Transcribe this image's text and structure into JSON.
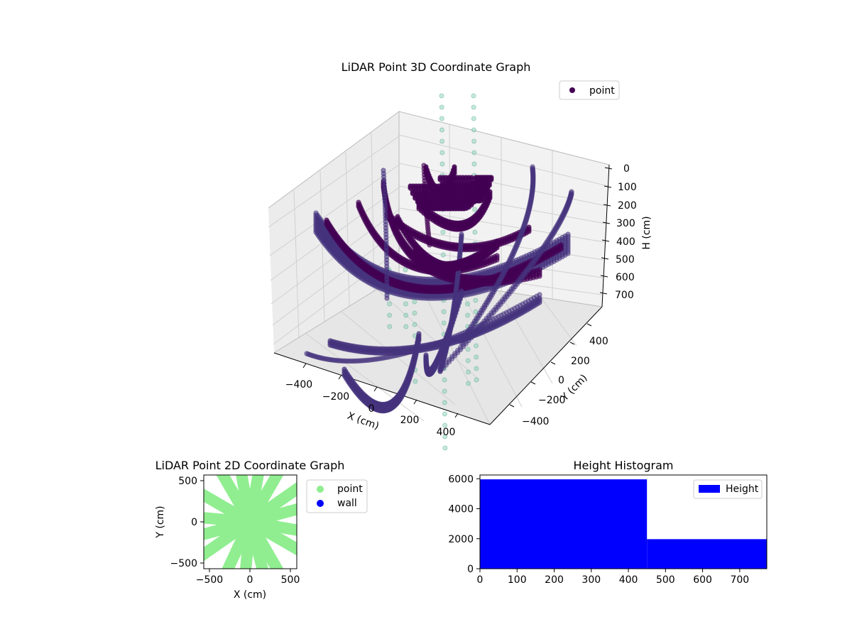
{
  "chart_data": [
    {
      "type": "scatter3d",
      "title": "LiDAR Point 3D Coordinate Graph",
      "xlabel": "X (cm)",
      "ylabel": "Y (cm)",
      "zlabel": "H (cm)",
      "x_ticks": [
        "−400",
        "−200",
        "0",
        "200",
        "400"
      ],
      "y_ticks": [
        "−400",
        "−200",
        "0",
        "200",
        "400"
      ],
      "z_ticks": [
        "0",
        "100",
        "200",
        "300",
        "400",
        "500",
        "600",
        "700"
      ],
      "xlim": [
        -520,
        520
      ],
      "ylim": [
        -520,
        520
      ],
      "zlim": [
        0,
        760
      ],
      "legend": [
        "point"
      ],
      "colors": {
        "point": "#440154",
        "arc_mid": "#46337e",
        "pole": "#7fd3a6"
      }
    },
    {
      "type": "scatter",
      "title": "LiDAR Point 2D Coordinate Graph",
      "xlabel": "X (cm)",
      "ylabel": "Y (cm)",
      "x_ticks": [
        "−500",
        "0",
        "500"
      ],
      "y_ticks": [
        "500",
        "0",
        "−500"
      ],
      "xlim": [
        -560,
        560
      ],
      "ylim": [
        -560,
        560
      ],
      "series": [
        {
          "name": "point",
          "color": "#90ee90"
        },
        {
          "name": "wall",
          "color": "#0000ff"
        }
      ]
    },
    {
      "type": "histogram",
      "title": "Height Histogram",
      "bin_edges": [
        0,
        450,
        773
      ],
      "values": [
        5960,
        1970
      ],
      "x_ticks": [
        "0",
        "100",
        "200",
        "300",
        "400",
        "500",
        "600",
        "700"
      ],
      "y_ticks": [
        "0",
        "2000",
        "4000",
        "6000"
      ],
      "xlim": [
        0,
        773
      ],
      "ylim": [
        0,
        6250
      ],
      "legend": [
        "Height"
      ],
      "color": "#0000ff"
    }
  ]
}
